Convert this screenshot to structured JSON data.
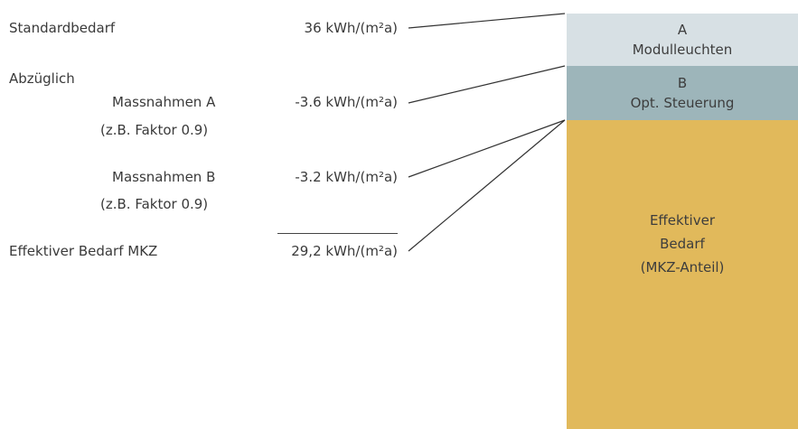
{
  "left": {
    "standard_label": "Standardbedarf",
    "standard_value": "36 kWh/(m²a)",
    "deduction_label": "Abzüglich",
    "measure_a_label": "Massnahmen A",
    "measure_a_note": "(z.B. Faktor 0.9)",
    "measure_a_value": "-3.6 kWh/(m²a)",
    "measure_b_label": "Massnahmen B",
    "measure_b_note": "(z.B. Faktor 0.9)",
    "measure_b_value": "-3.2 kWh/(m²a)",
    "effective_label": "Effektiver Bedarf MKZ",
    "effective_value": "29,2 kWh/(m²a)"
  },
  "bar": {
    "segment_a": {
      "letter": "A",
      "name": "Modulleuchten",
      "color": "#d7e0e4"
    },
    "segment_b": {
      "letter": "B",
      "name": "Opt. Steuerung",
      "color": "#9db5ba"
    },
    "segment_c": {
      "line1": "Effektiver",
      "line2": "Bedarf",
      "line3": "(MKZ-Anteil)",
      "color": "#e1b95b"
    }
  },
  "colors": {
    "text": "#3a3a3a",
    "connector": "#333333"
  }
}
